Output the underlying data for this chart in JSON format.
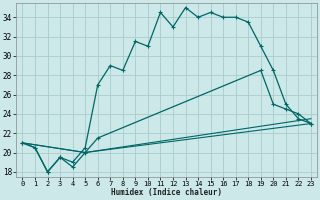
{
  "xlabel": "Humidex (Indice chaleur)",
  "bg_color": "#cce8e8",
  "grid_color": "#aacccc",
  "line_color": "#006666",
  "xlim": [
    -0.5,
    23.5
  ],
  "ylim": [
    17.5,
    35.5
  ],
  "yticks": [
    18,
    20,
    22,
    24,
    26,
    28,
    30,
    32,
    34
  ],
  "xticks": [
    0,
    1,
    2,
    3,
    4,
    5,
    6,
    7,
    8,
    9,
    10,
    11,
    12,
    13,
    14,
    15,
    16,
    17,
    18,
    19,
    20,
    21,
    22,
    23
  ],
  "series1_x": [
    0,
    1,
    2,
    3,
    4,
    5,
    6,
    7,
    8,
    9,
    10,
    11,
    12,
    13,
    14,
    15,
    16,
    17,
    18,
    19,
    20,
    21,
    22,
    23
  ],
  "series1_y": [
    21.0,
    20.5,
    18.0,
    19.5,
    19.0,
    20.5,
    27.0,
    29.0,
    28.5,
    31.5,
    31.0,
    34.5,
    33.0,
    35.0,
    34.0,
    34.5,
    34.0,
    34.0,
    33.5,
    31.0,
    28.5,
    25.0,
    23.5,
    23.0
  ],
  "series2_x": [
    0,
    1,
    2,
    3,
    4,
    5,
    6,
    19,
    20,
    21,
    22,
    23
  ],
  "series2_y": [
    21.0,
    20.5,
    18.0,
    19.5,
    18.5,
    20.0,
    21.5,
    28.5,
    25.0,
    24.5,
    24.0,
    23.0
  ],
  "series3_x": [
    0,
    5,
    23
  ],
  "series3_y": [
    21.0,
    20.0,
    23.0
  ],
  "series4_x": [
    0,
    5,
    23
  ],
  "series4_y": [
    21.0,
    20.0,
    23.5
  ]
}
